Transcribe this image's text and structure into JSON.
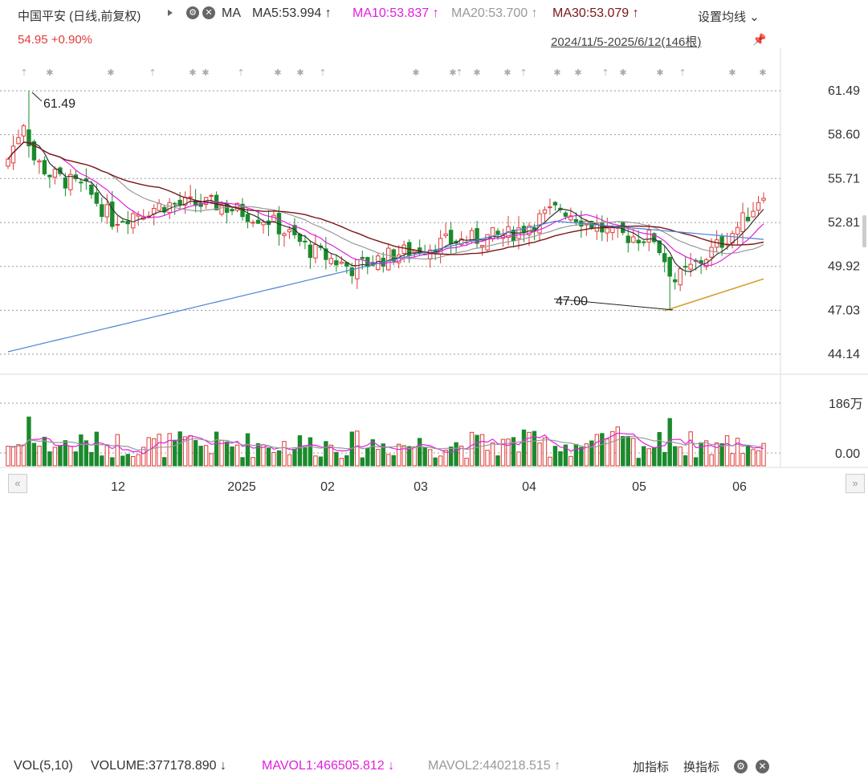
{
  "header": {
    "title": "中国平安 (日线,前复权)",
    "ma_label": "MA",
    "ma5": "MA5:53.994 ↑",
    "ma10": "MA10:53.837 ↑",
    "ma20": "MA20:53.700 ↑",
    "ma30": "MA30:53.079 ↑",
    "setting_label": "设置均线 ⌄",
    "price_change": "54.95 +0.90%",
    "range_label": "2024/11/5-2025/6/12(146根)"
  },
  "volume_header": {
    "vol_label": "VOL(5,10)",
    "volume": "VOLUME:377178.890 ↓",
    "mavol1": "MAVOL1:466505.812 ↓",
    "mavol2": "MAVOL2:440218.515 ↑",
    "add_indicator": "加指标",
    "switch_indicator": "换指标"
  },
  "icons": {
    "play": "play-icon",
    "gear": "gear-icon",
    "close": "close-icon",
    "pin": "pin-icon",
    "scroll_left": "double-left-icon",
    "scroll_right": "double-right-icon"
  },
  "colors": {
    "up": "#e03a3a",
    "down": "#1a8a2c",
    "ma5": "#333333",
    "ma10": "#e020e0",
    "ma20": "#999999",
    "ma30": "#7a1616",
    "ma_long": "#4a82d4",
    "trend": "#d4a030",
    "grid": "#999999"
  },
  "chart_data": {
    "type": "candlestick",
    "price_axis": {
      "ticks": [
        "61.49",
        "58.60",
        "55.71",
        "52.81",
        "49.92",
        "47.03",
        "44.14"
      ],
      "range": [
        43.6,
        62.8
      ]
    },
    "volume_axis": {
      "ticks": [
        "186万",
        "0.00"
      ],
      "max": 1860000
    },
    "x_ticks": [
      "12",
      "2025",
      "02",
      "03",
      "04",
      "05",
      "06"
    ],
    "annotations": [
      {
        "label": "61.49",
        "type": "high"
      },
      {
        "label": "47.00",
        "type": "low"
      }
    ],
    "series": [
      {
        "name": "MA5",
        "value": 53.994
      },
      {
        "name": "MA10",
        "value": 53.837
      },
      {
        "name": "MA20",
        "value": 53.7
      },
      {
        "name": "MA30",
        "value": 53.079
      }
    ],
    "volume_series": [
      {
        "name": "MAVOL1",
        "value": 466505.812
      },
      {
        "name": "MAVOL2",
        "value": 440218.515
      }
    ],
    "last_close": 54.95,
    "last_volume": 377178.89,
    "bar_count": 146
  }
}
